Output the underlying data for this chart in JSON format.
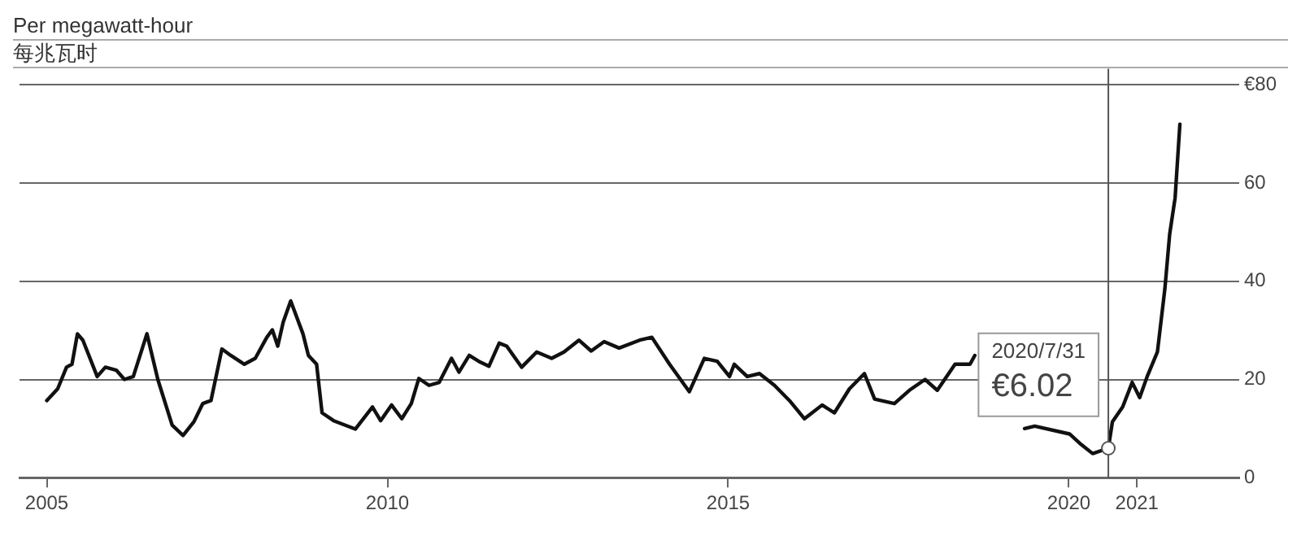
{
  "chart_data": {
    "type": "line",
    "title": "Per megawatt-hour",
    "subtitle": "每兆瓦时",
    "x": [
      2005.0,
      2005.16,
      2005.29,
      2005.37,
      2005.45,
      2005.53,
      2005.74,
      2005.86,
      2006.02,
      2006.14,
      2006.27,
      2006.47,
      2006.63,
      2006.84,
      2007.0,
      2007.16,
      2007.29,
      2007.41,
      2007.57,
      2007.7,
      2007.9,
      2008.06,
      2008.23,
      2008.31,
      2008.39,
      2008.47,
      2008.58,
      2008.76,
      2008.84,
      2008.96,
      2009.04,
      2009.21,
      2009.53,
      2009.78,
      2009.9,
      2010.06,
      2010.21,
      2010.35,
      2010.46,
      2010.61,
      2010.76,
      2010.94,
      2011.05,
      2011.2,
      2011.34,
      2011.49,
      2011.64,
      2011.75,
      2011.97,
      2012.19,
      2012.41,
      2012.59,
      2012.81,
      2012.99,
      2013.18,
      2013.4,
      2013.7,
      2013.88,
      2014.14,
      2014.43,
      2014.65,
      2014.84,
      2015.02,
      2015.09,
      2015.28,
      2015.46,
      2015.68,
      2015.9,
      2016.12,
      2016.38,
      2016.56,
      2016.78,
      2017.0,
      2017.15,
      2017.44,
      2017.66,
      2017.89,
      2018.07,
      2018.33,
      2018.55,
      2018.62,
      2019.0,
      2019.35,
      2019.5,
      2020.01,
      2020.16,
      2020.35,
      2020.58,
      2020.64,
      2020.79,
      2020.93,
      2021.04,
      2021.15,
      2021.3,
      2021.41,
      2021.48,
      2021.56,
      2021.63
    ],
    "series": [
      {
        "color": "#111111",
        "values": [
          15.7,
          18.1,
          22.5,
          23.1,
          29.3,
          28.0,
          20.6,
          22.5,
          21.9,
          20.0,
          20.6,
          29.3,
          20.0,
          10.7,
          8.6,
          11.4,
          15.1,
          15.7,
          26.2,
          24.9,
          23.1,
          24.3,
          28.6,
          30.1,
          26.8,
          31.7,
          36.0,
          29.3,
          24.9,
          23.1,
          13.2,
          11.6,
          9.9,
          14.4,
          11.6,
          14.8,
          12.0,
          15.1,
          20.2,
          18.8,
          19.4,
          24.3,
          21.5,
          24.9,
          23.7,
          22.7,
          27.4,
          26.8,
          22.5,
          25.6,
          24.3,
          25.6,
          28.0,
          25.8,
          27.7,
          26.4,
          28.0,
          28.6,
          23.1,
          17.5,
          24.3,
          23.7,
          20.6,
          23.1,
          20.6,
          21.2,
          18.8,
          15.7,
          12.0,
          14.8,
          13.2,
          18.1,
          21.2,
          16.0,
          15.1,
          17.8,
          20.0,
          17.8,
          23.1,
          23.1,
          24.9,
          null,
          10.0,
          10.5,
          8.9,
          7.0,
          4.9,
          6.0,
          11.4,
          14.4,
          19.4,
          16.3,
          20.6,
          25.6,
          38.5,
          49.6,
          57,
          72
        ]
      }
    ],
    "xlim": [
      2004.6,
      2022.5
    ],
    "xticks": [
      2005,
      2010,
      2015,
      2020,
      2021
    ],
    "ylim": [
      0,
      80
    ],
    "yticks": [
      0,
      20,
      40,
      60,
      {
        "value": 80,
        "label": "€80"
      }
    ],
    "grid": "y",
    "legend": false,
    "marker": "none",
    "line_style": "solid",
    "ref_lines": [
      {
        "axis": "x",
        "value": 2020.58,
        "color": "#555555"
      }
    ],
    "annotations": [
      "2020/7/31",
      "€6.02"
    ]
  }
}
